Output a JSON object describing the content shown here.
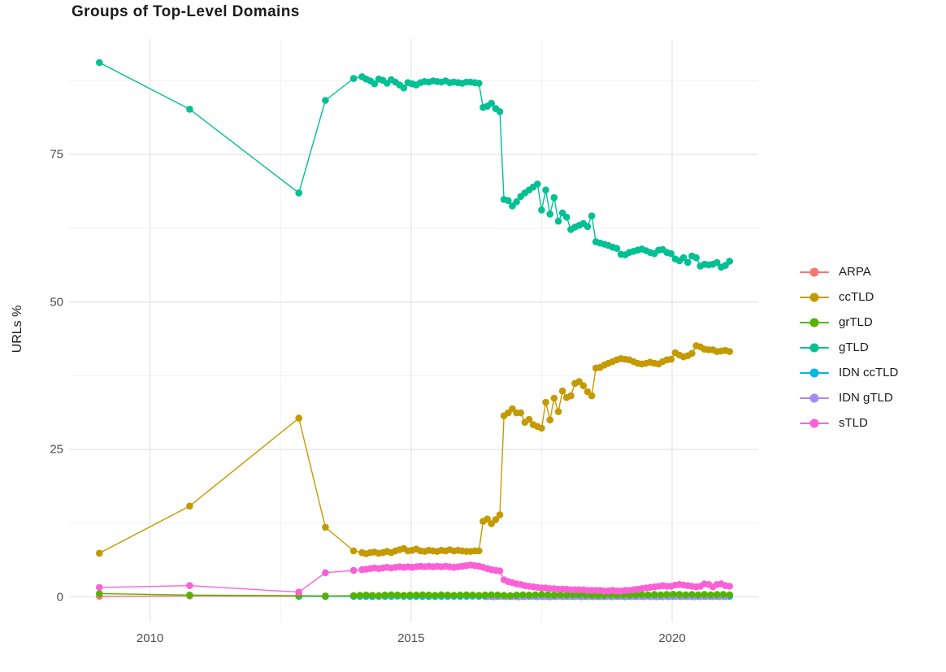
{
  "title": "Groups of Top-Level Domains",
  "colors": {
    "background": "#ffffff",
    "grid_major": "#e4e4e4",
    "grid_minor": "#f1f1f1",
    "tick_label": "#4d4d4d",
    "text": "#1b1b1b"
  },
  "chart_data": {
    "type": "line",
    "title": "Groups of Top-Level Domains",
    "xlabel": "",
    "ylabel": "URLs %",
    "grid": true,
    "legend_position": "right",
    "x_range": [
      2008.45,
      2021.65
    ],
    "y_range": [
      -4.2,
      94.6
    ],
    "x_ticks": [
      2010,
      2015,
      2020
    ],
    "x_minor": [
      2012.5,
      2017.5
    ],
    "y_ticks": [
      0,
      25,
      50,
      75
    ],
    "y_minor": [
      12.5,
      37.5,
      62.5,
      87.5
    ],
    "draw_order": [
      "ARPA",
      "IDN ccTLD",
      "IDN gTLD",
      "ccTLD",
      "grTLD",
      "gTLD",
      "sTLD"
    ],
    "series": [
      {
        "name": "ARPA",
        "color": "#F8766D",
        "points": [
          [
            2009.03,
            0.1
          ],
          [
            2010.76,
            0.15
          ],
          [
            2012.85,
            0.1
          ],
          [
            2013.36,
            0.05
          ]
        ]
      },
      {
        "name": "ccTLD",
        "color": "#C49A00",
        "prefix": [
          [
            2009.03,
            7.4
          ],
          [
            2010.76,
            15.4
          ],
          [
            2012.85,
            30.3
          ],
          [
            2013.36,
            11.8
          ],
          [
            2013.9,
            7.8
          ]
        ],
        "x_start": 2014.06,
        "x_step": 0.08,
        "values": [
          7.5,
          7.3,
          7.5,
          7.6,
          7.4,
          7.5,
          7.7,
          7.5,
          7.8,
          8.0,
          8.2,
          7.8,
          7.9,
          8.1,
          7.8,
          7.7,
          7.9,
          7.8,
          7.7,
          7.9,
          7.8,
          8.0,
          7.8,
          7.9,
          7.8,
          7.7,
          7.7,
          7.8,
          7.8,
          12.8,
          13.2,
          12.4,
          13.1,
          13.9,
          30.7,
          31.2,
          31.9,
          31.2,
          31.2,
          29.6,
          30.1,
          29.2,
          28.9,
          28.6,
          33.0,
          30.0,
          33.7,
          31.4,
          34.9,
          33.8,
          34.1,
          36.2,
          36.5,
          35.8,
          34.8,
          34.1,
          38.8,
          38.9,
          39.3,
          39.6,
          39.9,
          40.2,
          40.4,
          40.3,
          40.2,
          39.9,
          39.6,
          39.5,
          39.6,
          39.8,
          39.6,
          39.5,
          39.9,
          40.2,
          40.3,
          41.4,
          41.0,
          40.7,
          40.9,
          41.3,
          42.6,
          42.4,
          42.0,
          41.9,
          41.9,
          41.6,
          41.7,
          41.8,
          41.6
        ]
      },
      {
        "name": "grTLD",
        "color": "#53B400",
        "prefix": [
          [
            2009.03,
            0.55
          ],
          [
            2010.76,
            0.3
          ],
          [
            2012.85,
            0.2
          ],
          [
            2013.36,
            0.15
          ]
        ],
        "x_start": 2013.9,
        "x_step": 0.12,
        "values": [
          0.2,
          0.25,
          0.3,
          0.25,
          0.2,
          0.3,
          0.35,
          0.3,
          0.25,
          0.3,
          0.3,
          0.35,
          0.3,
          0.25,
          0.35,
          0.3,
          0.25,
          0.3,
          0.35,
          0.3,
          0.25,
          0.3,
          0.35,
          0.3,
          0.25,
          0.2,
          0.3,
          0.35,
          0.3,
          0.35,
          0.4,
          0.35,
          0.3,
          0.35,
          0.3,
          0.35,
          0.4,
          0.35,
          0.3,
          0.25,
          0.3,
          0.35,
          0.3,
          0.35,
          0.3,
          0.35,
          0.4,
          0.35,
          0.4,
          0.35,
          0.4,
          0.45,
          0.4,
          0.35,
          0.4,
          0.35,
          0.4,
          0.35,
          0.4,
          0.4,
          0.35
        ]
      },
      {
        "name": "gTLD",
        "color": "#00C094",
        "prefix": [
          [
            2009.03,
            90.6
          ],
          [
            2010.76,
            82.7
          ],
          [
            2012.85,
            68.5
          ],
          [
            2013.36,
            84.2
          ],
          [
            2013.9,
            87.9
          ]
        ],
        "x_start": 2014.06,
        "x_step": 0.08,
        "values": [
          88.2,
          87.8,
          87.5,
          87.0,
          87.8,
          87.6,
          87.1,
          87.7,
          87.3,
          86.8,
          86.3,
          87.2,
          87.0,
          86.8,
          87.2,
          87.4,
          87.3,
          87.5,
          87.4,
          87.3,
          87.5,
          87.2,
          87.3,
          87.2,
          87.1,
          87.3,
          87.3,
          87.2,
          87.1,
          83.0,
          83.2,
          83.7,
          82.8,
          82.3,
          67.4,
          67.2,
          66.3,
          67.0,
          67.9,
          68.5,
          69.0,
          69.5,
          70.0,
          65.6,
          69.0,
          64.9,
          67.7,
          63.7,
          65.1,
          64.4,
          62.3,
          62.7,
          63.0,
          63.3,
          62.8,
          64.6,
          60.2,
          60.0,
          59.8,
          59.6,
          59.3,
          59.1,
          58.1,
          58.0,
          58.4,
          58.6,
          58.8,
          59.0,
          58.7,
          58.4,
          58.2,
          58.8,
          58.9,
          58.4,
          58.2,
          57.3,
          57.0,
          57.5,
          56.7,
          57.8,
          57.5,
          56.1,
          56.4,
          56.3,
          56.4,
          56.7,
          55.9,
          56.2,
          56.9
        ]
      },
      {
        "name": "IDN ccTLD",
        "color": "#00B6EB",
        "prefix": [
          [
            2012.85,
            0.1
          ],
          [
            2013.36,
            0.1
          ]
        ],
        "x_start": 2013.9,
        "x_step": 0.12,
        "values": [
          0.08,
          0.1,
          0.08,
          0.06,
          0.1,
          0.08,
          0.1,
          0.12,
          0.1,
          0.08,
          0.1,
          0.08,
          0.06,
          0.08,
          0.1,
          0.08,
          0.1,
          0.08,
          0.1,
          0.12,
          0.1,
          0.08,
          0.1,
          0.08,
          0.1,
          0.08,
          0.06,
          0.08,
          0.1,
          0.08,
          0.1,
          0.08,
          0.1,
          0.12,
          0.1,
          0.08,
          0.1,
          0.08,
          0.1,
          0.08,
          0.06,
          0.08,
          0.1,
          0.08,
          0.1,
          0.08,
          0.1,
          0.12,
          0.1,
          0.08,
          0.1,
          0.08,
          0.1,
          0.08,
          0.1,
          0.08,
          0.1,
          0.08,
          0.1,
          0.1,
          0.08
        ]
      },
      {
        "name": "IDN gTLD",
        "color": "#A58AFF",
        "x_start": 2016.46,
        "x_step": 0.12,
        "values": [
          0.05,
          0.02,
          0.06,
          0.03,
          0.05,
          0.02,
          0.04,
          0.06,
          0.03,
          0.05,
          0.02,
          0.05,
          0.03,
          0.06,
          0.04,
          0.02,
          0.05,
          0.03,
          0.05,
          0.06,
          0.03,
          0.05,
          0.02,
          0.04,
          0.06,
          0.03,
          0.05,
          0.02,
          0.05,
          0.03,
          0.06,
          0.04,
          0.05,
          0.03,
          0.05,
          0.06,
          0.04,
          0.05,
          0.05
        ]
      },
      {
        "name": "sTLD",
        "color": "#FB61D7",
        "prefix": [
          [
            2009.03,
            1.6
          ],
          [
            2010.76,
            1.9
          ],
          [
            2012.85,
            0.8
          ],
          [
            2013.36,
            4.1
          ],
          [
            2013.9,
            4.5
          ]
        ],
        "x_start": 2014.06,
        "x_step": 0.08,
        "values": [
          4.6,
          4.7,
          4.8,
          4.9,
          4.8,
          4.9,
          5.0,
          4.9,
          5.0,
          5.1,
          5.0,
          5.1,
          5.0,
          5.1,
          5.2,
          5.1,
          5.2,
          5.1,
          5.2,
          5.1,
          5.2,
          5.1,
          5.0,
          5.1,
          5.2,
          5.3,
          5.4,
          5.3,
          5.2,
          5.0,
          4.8,
          4.6,
          4.5,
          4.4,
          2.9,
          2.6,
          2.4,
          2.2,
          2.1,
          1.9,
          1.8,
          1.7,
          1.6,
          1.5,
          1.5,
          1.4,
          1.4,
          1.3,
          1.3,
          1.3,
          1.2,
          1.2,
          1.2,
          1.2,
          1.1,
          1.1,
          1.1,
          1.1,
          1.0,
          1.0,
          1.1,
          1.0,
          1.0,
          1.1,
          1.1,
          1.2,
          1.3,
          1.4,
          1.5,
          1.6,
          1.7,
          1.8,
          1.9,
          1.8,
          1.8,
          2.0,
          2.1,
          2.0,
          1.9,
          1.8,
          1.7,
          1.8,
          2.2,
          2.1,
          1.7,
          2.1,
          2.2,
          1.9,
          1.8
        ]
      }
    ]
  }
}
